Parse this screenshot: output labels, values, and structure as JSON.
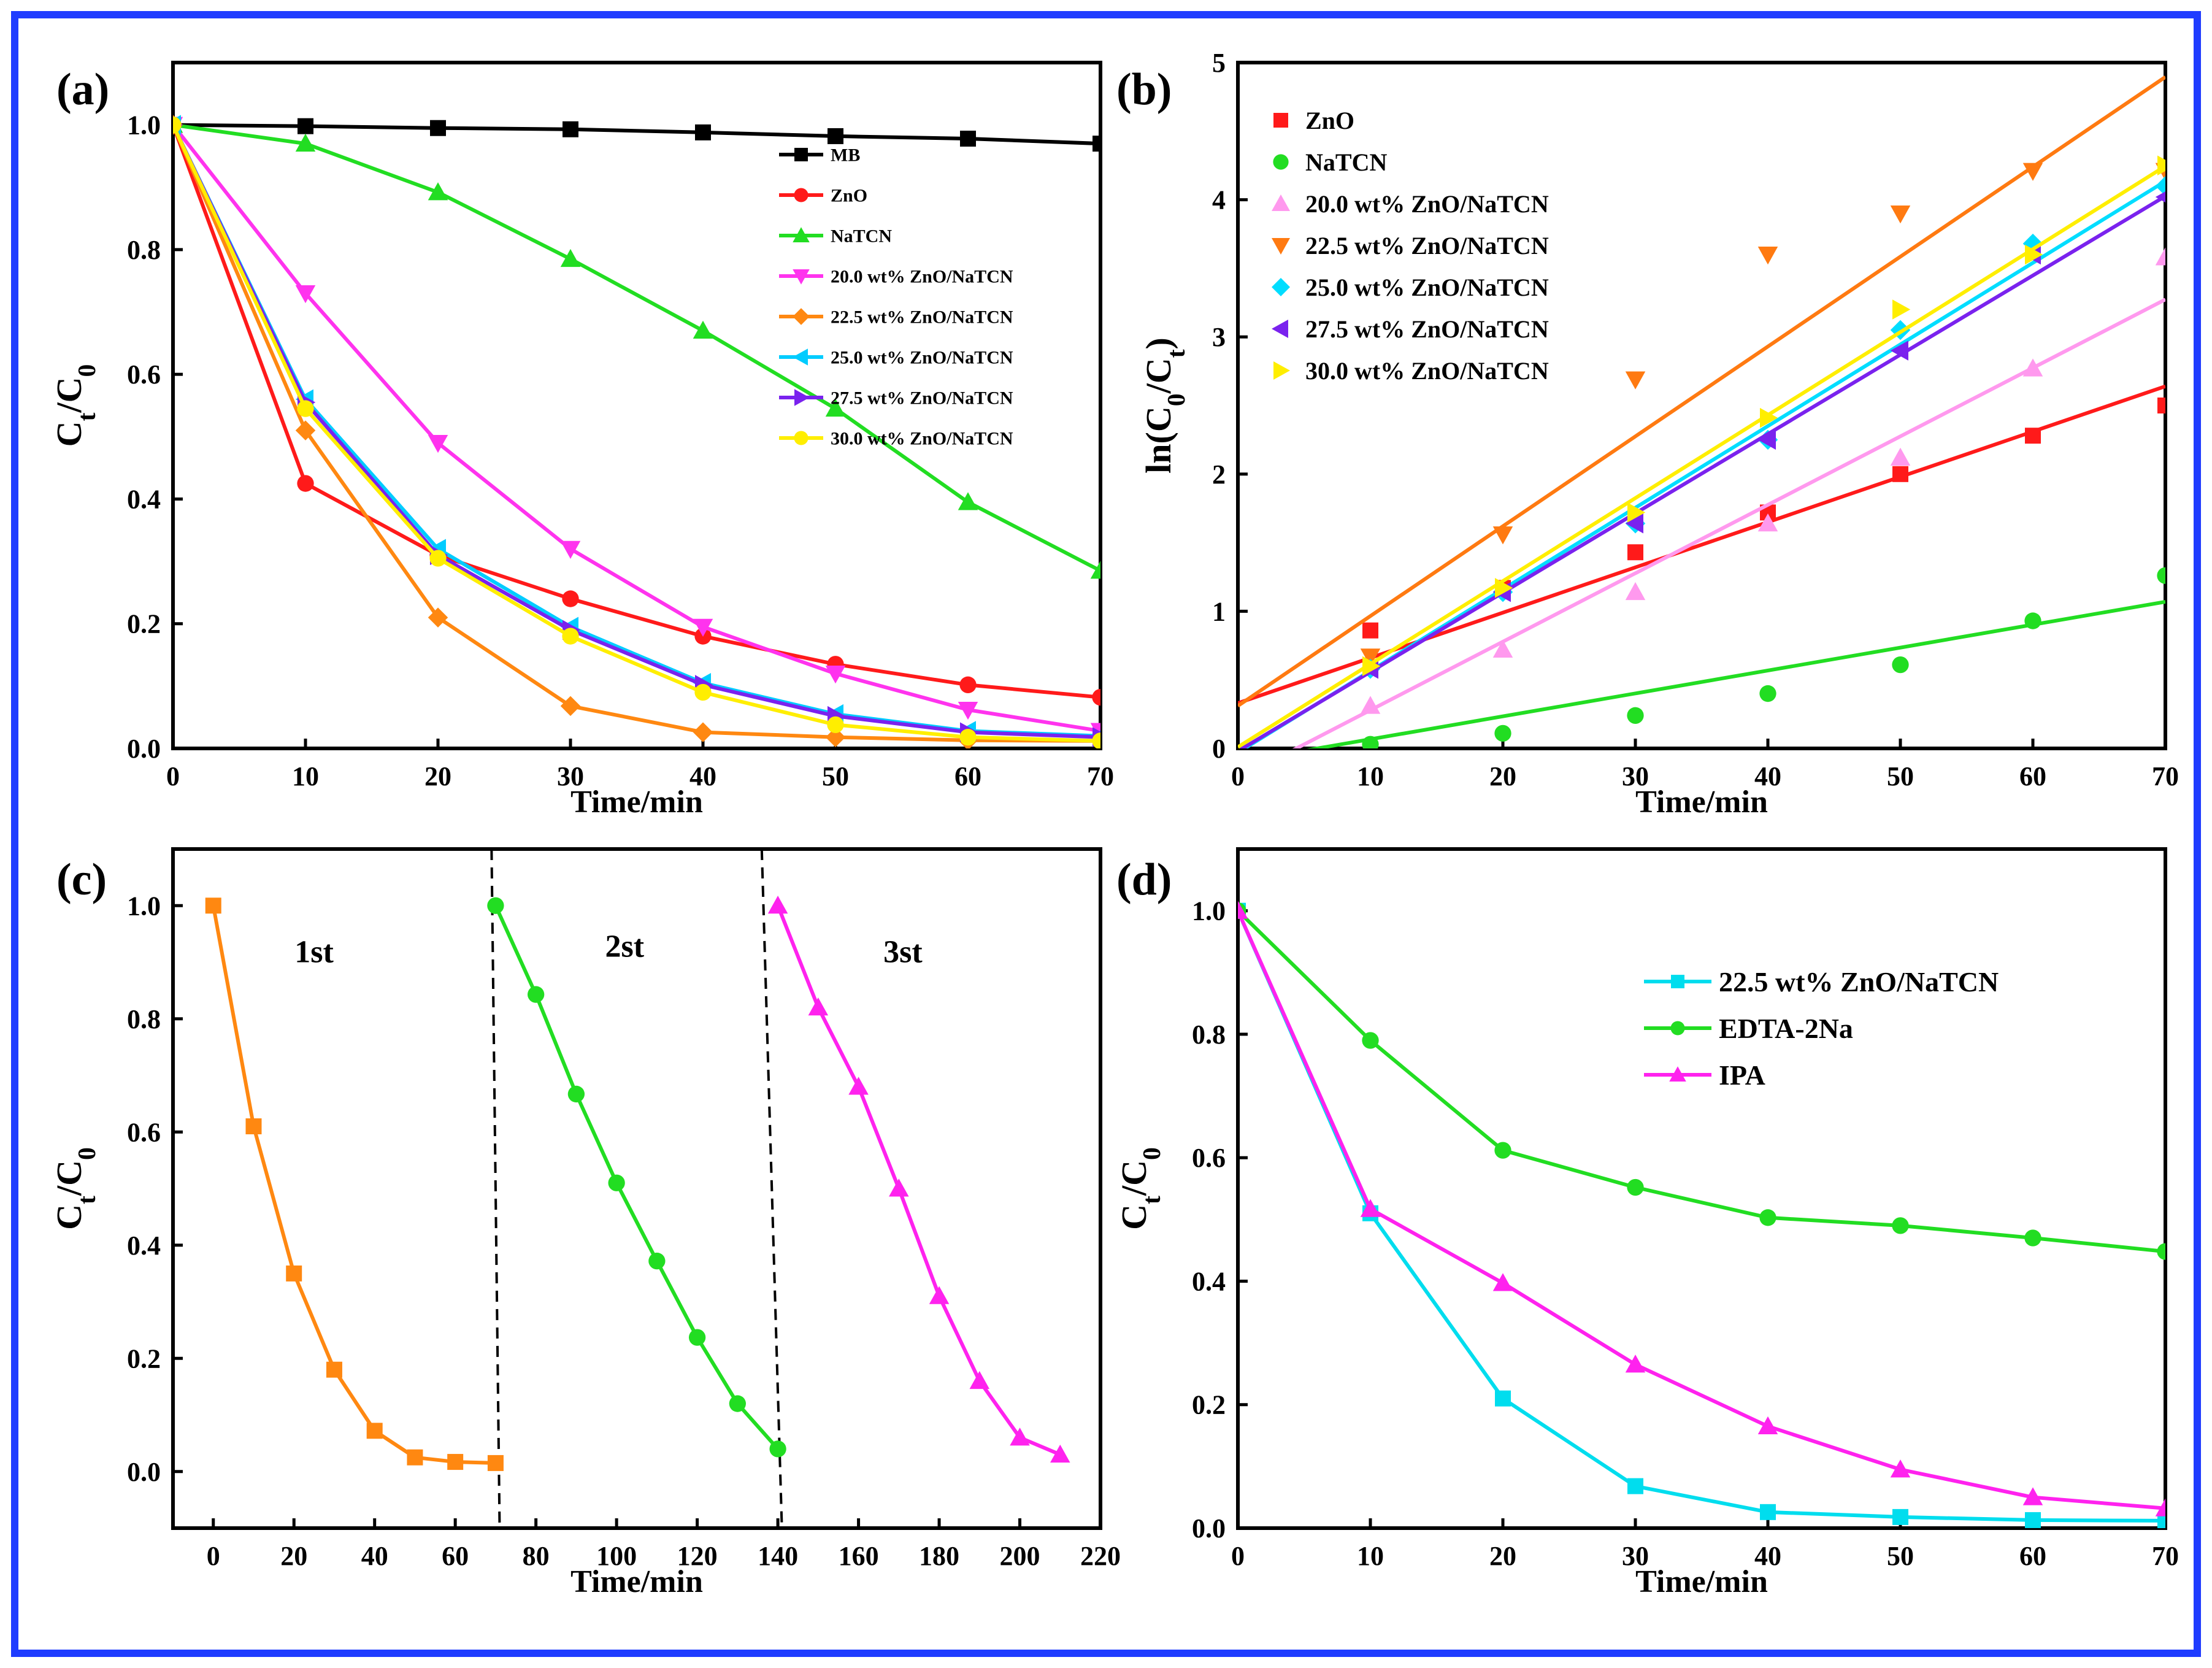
{
  "chart_data": [
    {
      "type": "line",
      "panel_label": "(a)",
      "title": "",
      "xlabel": "Time/min",
      "ylabel": "C_t/C_0",
      "xlim": [
        0,
        70
      ],
      "ylim": [
        0,
        1.1
      ],
      "xticks": [
        0,
        10,
        20,
        30,
        40,
        50,
        60,
        70
      ],
      "yticks": [
        0.0,
        0.2,
        0.4,
        0.6,
        0.8,
        1.0
      ],
      "legend_position": "top-right",
      "x": [
        0,
        10,
        20,
        30,
        40,
        50,
        60,
        70
      ],
      "series": [
        {
          "name": "MB",
          "color": "#000000",
          "marker": "square",
          "values": [
            1.0,
            0.998,
            0.995,
            0.993,
            0.988,
            0.982,
            0.978,
            0.97
          ]
        },
        {
          "name": "ZnO",
          "color": "#ff1a1a",
          "marker": "circle",
          "values": [
            1.0,
            0.425,
            0.31,
            0.24,
            0.18,
            0.135,
            0.102,
            0.082
          ]
        },
        {
          "name": "NaTCN",
          "color": "#22dd22",
          "marker": "triangle-up",
          "values": [
            1.0,
            0.97,
            0.892,
            0.785,
            0.67,
            0.545,
            0.395,
            0.285
          ]
        },
        {
          "name": "20.0 wt% ZnO/NaTCN",
          "color": "#ff33ee",
          "marker": "triangle-down",
          "values": [
            1.0,
            0.73,
            0.49,
            0.32,
            0.195,
            0.12,
            0.062,
            0.028
          ]
        },
        {
          "name": "22.5 wt% ZnO/NaTCN",
          "color": "#ff8811",
          "marker": "diamond",
          "values": [
            1.0,
            0.51,
            0.21,
            0.068,
            0.026,
            0.018,
            0.013,
            0.012
          ]
        },
        {
          "name": "25.0 wt% ZnO/NaTCN",
          "color": "#00ccff",
          "marker": "triangle-left",
          "values": [
            1.0,
            0.56,
            0.32,
            0.195,
            0.105,
            0.055,
            0.028,
            0.02
          ]
        },
        {
          "name": "27.5 wt% ZnO/NaTCN",
          "color": "#7a22ee",
          "marker": "triangle-right",
          "values": [
            1.0,
            0.555,
            0.31,
            0.19,
            0.102,
            0.052,
            0.026,
            0.018
          ]
        },
        {
          "name": "30.0 wt% ZnO/NaTCN",
          "color": "#ffee00",
          "marker": "circle",
          "values": [
            1.0,
            0.545,
            0.305,
            0.18,
            0.09,
            0.038,
            0.018,
            0.012
          ]
        }
      ]
    },
    {
      "type": "scatter",
      "panel_label": "(b)",
      "title": "",
      "xlabel": "Time/min",
      "ylabel": "ln(C_0/C_t)",
      "xlim": [
        0,
        70
      ],
      "ylim": [
        0,
        5
      ],
      "xticks": [
        0,
        10,
        20,
        30,
        40,
        50,
        60,
        70
      ],
      "yticks": [
        0,
        1,
        2,
        3,
        4,
        5
      ],
      "legend_position": "top-left",
      "x": [
        10,
        20,
        30,
        40,
        50,
        60,
        70
      ],
      "series": [
        {
          "name": "ZnO",
          "color": "#ff1a1a",
          "marker": "square",
          "values": [
            0.86,
            1.17,
            1.43,
            1.72,
            2.0,
            2.28,
            2.5
          ],
          "fit": [
            0.33,
            0.033
          ]
        },
        {
          "name": "NaTCN",
          "color": "#22dd22",
          "marker": "circle",
          "values": [
            0.03,
            0.11,
            0.24,
            0.4,
            0.61,
            0.93,
            1.26
          ],
          "fit": [
            -0.1,
            0.0167
          ]
        },
        {
          "name": "20.0 wt% ZnO/NaTCN",
          "color": "#ff99ee",
          "marker": "triangle-up",
          "values": [
            0.31,
            0.72,
            1.14,
            1.64,
            2.12,
            2.77,
            3.58
          ],
          "fit": [
            -0.22,
            0.0499
          ]
        },
        {
          "name": "22.5 wt% ZnO/NaTCN",
          "color": "#ff7a11",
          "marker": "triangle-down",
          "values": [
            0.67,
            1.56,
            2.69,
            3.6,
            3.9,
            4.21,
            4.21
          ],
          "fit": [
            0.31,
            0.0655
          ]
        },
        {
          "name": "25.0 wt% ZnO/NaTCN",
          "color": "#00ddff",
          "marker": "diamond",
          "values": [
            0.58,
            1.14,
            1.64,
            2.25,
            3.05,
            3.68,
            4.1
          ],
          "fit": [
            -0.03,
            0.0595
          ]
        },
        {
          "name": "27.5 wt% ZnO/NaTCN",
          "color": "#7a22ee",
          "marker": "triangle-left",
          "values": [
            0.58,
            1.14,
            1.64,
            2.25,
            2.9,
            3.6,
            4.02
          ],
          "fit": [
            -0.02,
            0.0578
          ]
        },
        {
          "name": "30.0 wt% ZnO/NaTCN",
          "color": "#ffee00",
          "marker": "triangle-right",
          "values": [
            0.6,
            1.17,
            1.72,
            2.41,
            3.2,
            3.6,
            4.25
          ],
          "fit": [
            0.01,
            0.0605
          ]
        }
      ]
    },
    {
      "type": "line",
      "panel_label": "(c)",
      "title": "",
      "xlabel": "Time/min",
      "ylabel": "C_t/C_0",
      "xlim": [
        -10,
        220
      ],
      "ylim": [
        -0.1,
        1.1
      ],
      "xticks": [
        0,
        20,
        40,
        60,
        80,
        100,
        120,
        140,
        160,
        180,
        200,
        220
      ],
      "yticks": [
        0.0,
        0.2,
        0.4,
        0.6,
        0.8,
        1.0
      ],
      "dividers": [
        [
          69,
          71
        ],
        [
          136,
          141
        ]
      ],
      "series": [
        {
          "name": "1st",
          "color": "#ff8811",
          "marker": "square",
          "x": [
            0,
            10,
            20,
            30,
            40,
            50,
            60,
            70
          ],
          "values": [
            1.0,
            0.61,
            0.35,
            0.18,
            0.072,
            0.025,
            0.017,
            0.015
          ],
          "label_at": [
            25,
            0.9
          ]
        },
        {
          "name": "2st",
          "color": "#22dd22",
          "marker": "circle",
          "x": [
            70,
            80,
            90,
            100,
            110,
            120,
            130,
            140
          ],
          "values": [
            1.0,
            0.843,
            0.667,
            0.51,
            0.372,
            0.237,
            0.12,
            0.04
          ],
          "label_at": [
            102,
            0.91
          ]
        },
        {
          "name": "3st",
          "color": "#ff22ee",
          "marker": "triangle-up",
          "x": [
            140,
            150,
            160,
            170,
            180,
            190,
            200,
            210
          ],
          "values": [
            1.0,
            0.82,
            0.68,
            0.5,
            0.31,
            0.16,
            0.06,
            0.03
          ],
          "label_at": [
            171,
            0.9
          ]
        }
      ]
    },
    {
      "type": "line",
      "panel_label": "(d)",
      "title": "",
      "xlabel": "Time/min",
      "ylabel": "C_t/C_0",
      "xlim": [
        0,
        70
      ],
      "ylim": [
        0,
        1.1
      ],
      "xticks": [
        0,
        10,
        20,
        30,
        40,
        50,
        60,
        70
      ],
      "yticks": [
        0.0,
        0.2,
        0.4,
        0.6,
        0.8,
        1.0
      ],
      "legend_position": "top-right",
      "x": [
        0,
        10,
        20,
        30,
        40,
        50,
        60,
        70
      ],
      "series": [
        {
          "name": "22.5 wt% ZnO/NaTCN",
          "color": "#00ddee",
          "marker": "square",
          "values": [
            1.0,
            0.51,
            0.21,
            0.068,
            0.026,
            0.018,
            0.013,
            0.012
          ]
        },
        {
          "name": "EDTA-2Na",
          "color": "#22dd22",
          "marker": "circle",
          "values": [
            1.0,
            0.79,
            0.612,
            0.552,
            0.503,
            0.49,
            0.47,
            0.448
          ]
        },
        {
          "name": "IPA",
          "color": "#ff22ee",
          "marker": "triangle-up",
          "values": [
            1.0,
            0.517,
            0.397,
            0.265,
            0.165,
            0.095,
            0.05,
            0.032
          ]
        }
      ]
    }
  ]
}
